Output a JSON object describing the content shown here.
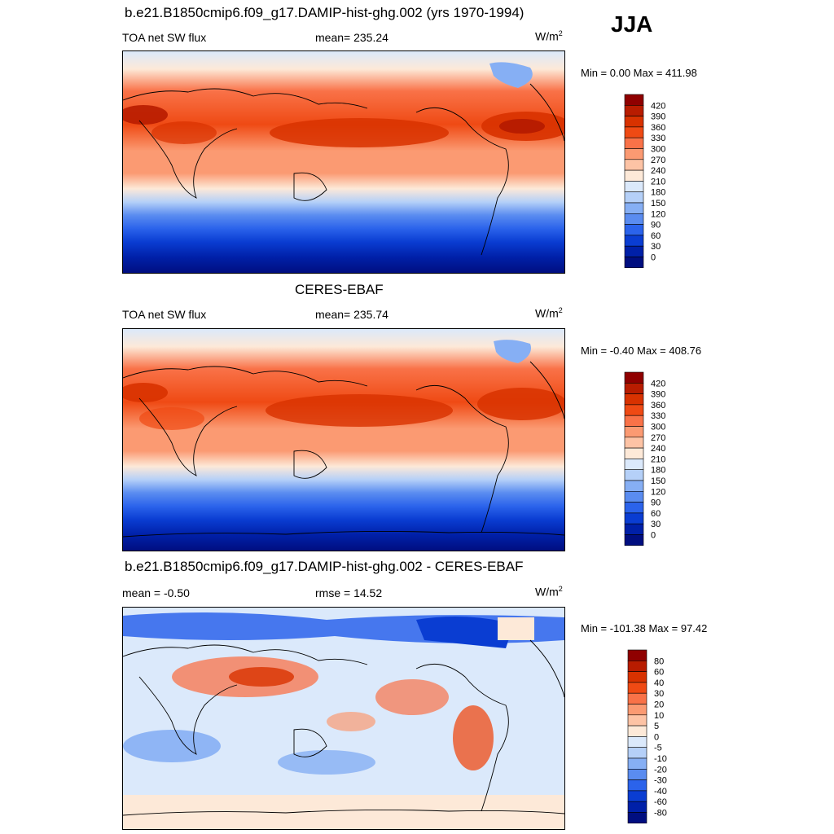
{
  "season": "JJA",
  "panels": [
    {
      "id": "model",
      "title": "b.e21.B1850cmip6.f09_g17.DAMIP-hist-ghg.002 (yrs 1970-1994)",
      "left_label": "TOA net SW flux",
      "center_label": "mean= 235.24",
      "units_base": "W/m",
      "units_exp": "2",
      "minmax": "Min =   0.00 Max = 411.98",
      "kind": "abs"
    },
    {
      "id": "obs",
      "title": "CERES-EBAF",
      "left_label": "TOA net SW flux",
      "center_label": "mean= 235.74",
      "units_base": "W/m",
      "units_exp": "2",
      "minmax": "Min =  -0.40 Max = 408.76",
      "kind": "abs"
    },
    {
      "id": "diff",
      "title": "b.e21.B1850cmip6.f09_g17.DAMIP-hist-ghg.002 - CERES-EBAF",
      "left_label": "mean =  -0.50",
      "center_label": "rmse =  14.52",
      "units_base": "W/m",
      "units_exp": "2",
      "minmax": "Min = -101.38 Max =  97.42",
      "kind": "diff"
    }
  ],
  "chart_data": [
    {
      "type": "heatmap",
      "title": "b.e21.B1850cmip6.f09_g17.DAMIP-hist-ghg.002 (yrs 1970-1994)",
      "variable": "TOA net SW flux",
      "units": "W/m2",
      "mean": 235.24,
      "min": 0.0,
      "max": 411.98,
      "colorbar_levels": [
        "420",
        "390",
        "360",
        "330",
        "300",
        "270",
        "240",
        "210",
        "180",
        "150",
        "120",
        "90",
        "60",
        "30",
        "0"
      ],
      "colorbar_colors": [
        "#8f0000",
        "#b81c00",
        "#d83200",
        "#ef4a14",
        "#f97248",
        "#fb9a72",
        "#fdc3a5",
        "#fde9d8",
        "#dbe9fb",
        "#b5d0f8",
        "#86aff4",
        "#5a8cf0",
        "#2b63eb",
        "#0a3dd2",
        "#0020a8",
        "#000e80"
      ],
      "zonal_mean_by_lat": [
        [
          90,
          225
        ],
        [
          75,
          245
        ],
        [
          60,
          215
        ],
        [
          45,
          320
        ],
        [
          30,
          345
        ],
        [
          15,
          330
        ],
        [
          0,
          305
        ],
        [
          -15,
          285
        ],
        [
          -30,
          225
        ],
        [
          -45,
          150
        ],
        [
          -60,
          60
        ],
        [
          -75,
          5
        ],
        [
          -90,
          0
        ]
      ]
    },
    {
      "type": "heatmap",
      "title": "CERES-EBAF",
      "variable": "TOA net SW flux",
      "units": "W/m2",
      "mean": 235.74,
      "min": -0.4,
      "max": 408.76,
      "colorbar_levels": [
        "420",
        "390",
        "360",
        "330",
        "300",
        "270",
        "240",
        "210",
        "180",
        "150",
        "120",
        "90",
        "60",
        "30",
        "0"
      ],
      "colorbar_colors": [
        "#8f0000",
        "#b81c00",
        "#d83200",
        "#ef4a14",
        "#f97248",
        "#fb9a72",
        "#fdc3a5",
        "#fde9d8",
        "#dbe9fb",
        "#b5d0f8",
        "#86aff4",
        "#5a8cf0",
        "#2b63eb",
        "#0a3dd2",
        "#0020a8",
        "#000e80"
      ],
      "zonal_mean_by_lat": [
        [
          90,
          225
        ],
        [
          75,
          240
        ],
        [
          60,
          230
        ],
        [
          45,
          320
        ],
        [
          30,
          345
        ],
        [
          15,
          325
        ],
        [
          0,
          300
        ],
        [
          -15,
          285
        ],
        [
          -30,
          230
        ],
        [
          -45,
          150
        ],
        [
          -60,
          60
        ],
        [
          -75,
          5
        ],
        [
          -90,
          0
        ]
      ]
    },
    {
      "type": "heatmap",
      "title": "b.e21.B1850cmip6.f09_g17.DAMIP-hist-ghg.002 - CERES-EBAF",
      "variable": "TOA net SW flux difference",
      "units": "W/m2",
      "mean": -0.5,
      "rmse": 14.52,
      "min": -101.38,
      "max": 97.42,
      "colorbar_levels": [
        "80",
        "60",
        "40",
        "30",
        "20",
        "10",
        "5",
        "0",
        "-5",
        "-10",
        "-20",
        "-30",
        "-40",
        "-60",
        "-80"
      ],
      "colorbar_colors": [
        "#8f0000",
        "#b81c00",
        "#d83200",
        "#ef4a14",
        "#f97248",
        "#fb9a72",
        "#fdc3a5",
        "#fde9d8",
        "#dbe9fb",
        "#b5d0f8",
        "#86aff4",
        "#5a8cf0",
        "#2b63eb",
        "#0a3dd2",
        "#0020a8",
        "#000e80"
      ]
    }
  ]
}
